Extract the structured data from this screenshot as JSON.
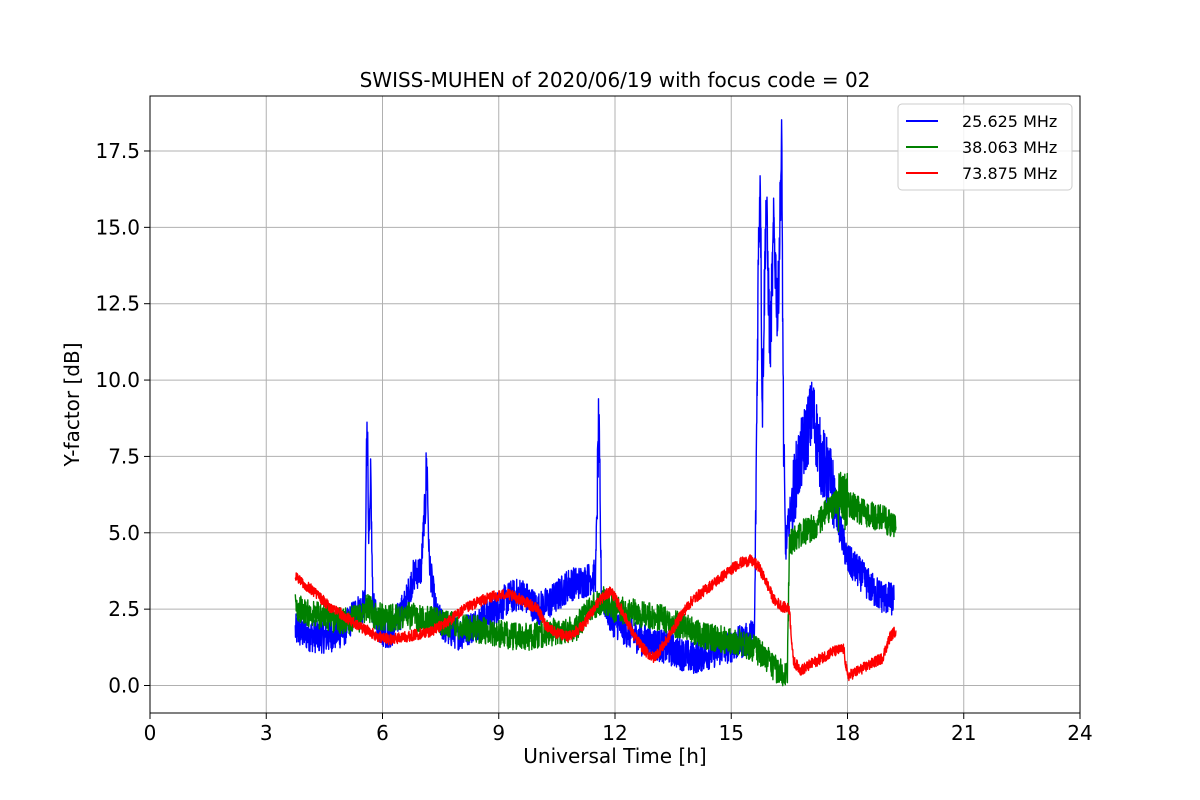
{
  "chart_data": {
    "type": "line",
    "title": "SWISS-MUHEN of 2020/06/19 with focus code = 02",
    "xlabel": "Universal Time [h]",
    "ylabel": "Y-factor [dB]",
    "xlim": [
      0,
      24
    ],
    "ylim": [
      -0.9,
      19.3
    ],
    "xticks": [
      0,
      3,
      6,
      9,
      12,
      15,
      18,
      21,
      24
    ],
    "xtick_labels": [
      "0",
      "3",
      "6",
      "9",
      "12",
      "15",
      "18",
      "21",
      "24"
    ],
    "yticks": [
      0.0,
      2.5,
      5.0,
      7.5,
      10.0,
      12.5,
      15.0,
      17.5
    ],
    "ytick_labels": [
      "0.0",
      "2.5",
      "5.0",
      "7.5",
      "10.0",
      "12.5",
      "15.0",
      "17.5"
    ],
    "grid": true,
    "legend_position": "top-right",
    "series": [
      {
        "name": "25.625 MHz",
        "color": "#0000ff",
        "x": [
          3.75,
          4.0,
          4.3,
          4.6,
          5.0,
          5.3,
          5.55,
          5.6,
          5.65,
          5.7,
          5.75,
          5.9,
          6.2,
          6.6,
          6.8,
          7.0,
          7.15,
          7.2,
          7.25,
          7.4,
          7.7,
          8.0,
          8.4,
          8.8,
          9.0,
          9.3,
          9.6,
          10.0,
          10.4,
          10.8,
          11.2,
          11.5,
          11.58,
          11.65,
          11.9,
          12.3,
          12.7,
          13.2,
          13.6,
          14.0,
          14.5,
          15.0,
          15.4,
          15.6,
          15.7,
          15.75,
          15.8,
          15.9,
          16.0,
          16.1,
          16.2,
          16.3,
          16.35,
          16.4,
          16.45,
          16.5,
          16.7,
          16.9,
          17.1,
          17.3,
          17.6,
          17.8,
          18.0,
          18.3,
          18.6,
          18.9,
          19.2
        ],
        "y": [
          1.8,
          1.7,
          1.6,
          1.6,
          1.8,
          2.4,
          2.6,
          9.2,
          4.5,
          6.5,
          2.6,
          1.9,
          1.7,
          2.7,
          3.6,
          3.8,
          7.2,
          4.3,
          3.6,
          2.2,
          1.8,
          1.7,
          2.0,
          2.4,
          2.6,
          2.9,
          3.0,
          2.5,
          2.8,
          3.3,
          3.4,
          3.6,
          8.6,
          3.0,
          2.2,
          1.8,
          1.5,
          1.3,
          1.1,
          0.9,
          1.1,
          1.3,
          1.5,
          1.7,
          14.0,
          17.0,
          9.0,
          16.0,
          11.0,
          15.0,
          12.0,
          17.8,
          8.0,
          4.5,
          5.0,
          5.5,
          7.0,
          8.0,
          9.0,
          7.5,
          6.5,
          5.2,
          4.1,
          3.7,
          3.2,
          2.9,
          2.8
        ]
      },
      {
        "name": "38.063 MHz",
        "color": "#008000",
        "x": [
          3.75,
          4.0,
          4.3,
          4.7,
          5.0,
          5.4,
          5.6,
          5.8,
          6.2,
          6.6,
          7.0,
          7.4,
          7.8,
          8.2,
          8.6,
          9.0,
          9.4,
          9.8,
          10.2,
          10.6,
          11.0,
          11.4,
          11.7,
          12.0,
          12.4,
          12.8,
          13.2,
          13.6,
          14.0,
          14.4,
          14.8,
          15.2,
          15.6,
          15.9,
          16.1,
          16.3,
          16.45,
          16.5,
          16.7,
          17.0,
          17.3,
          17.6,
          17.9,
          18.2,
          18.5,
          18.8,
          19.0,
          19.25
        ],
        "y": [
          2.6,
          2.4,
          2.3,
          2.2,
          2.1,
          2.2,
          2.6,
          2.3,
          2.2,
          2.3,
          2.2,
          2.1,
          2.0,
          1.9,
          1.8,
          1.7,
          1.6,
          1.6,
          1.7,
          1.8,
          1.9,
          2.6,
          2.8,
          2.5,
          2.4,
          2.3,
          2.2,
          2.0,
          1.8,
          1.6,
          1.5,
          1.4,
          1.2,
          0.9,
          0.6,
          0.4,
          0.5,
          4.6,
          4.9,
          5.1,
          5.4,
          5.9,
          6.1,
          5.8,
          5.6,
          5.5,
          5.4,
          5.2
        ]
      },
      {
        "name": "73.875 MHz",
        "color": "#ff0000",
        "x": [
          3.75,
          4.0,
          4.3,
          4.6,
          5.0,
          5.3,
          5.6,
          5.9,
          6.2,
          6.6,
          7.0,
          7.3,
          7.7,
          8.0,
          8.4,
          8.8,
          9.2,
          9.6,
          10.0,
          10.2,
          10.5,
          10.8,
          11.2,
          11.6,
          11.9,
          12.2,
          12.5,
          12.8,
          13.0,
          13.3,
          13.7,
          14.0,
          14.3,
          14.6,
          14.9,
          15.2,
          15.5,
          15.7,
          15.9,
          16.1,
          16.3,
          16.5,
          16.6,
          16.8,
          17.2,
          17.6,
          17.9,
          18.0,
          18.3,
          18.6,
          18.9,
          19.1,
          19.25
        ],
        "y": [
          3.6,
          3.3,
          3.0,
          2.6,
          2.3,
          2.0,
          1.8,
          1.6,
          1.5,
          1.6,
          1.7,
          1.8,
          2.1,
          2.4,
          2.7,
          2.9,
          3.0,
          2.8,
          2.5,
          2.0,
          1.7,
          1.6,
          2.0,
          2.8,
          3.1,
          2.4,
          1.6,
          1.1,
          0.9,
          1.4,
          2.3,
          2.8,
          3.1,
          3.4,
          3.7,
          4.0,
          4.1,
          3.9,
          3.4,
          2.8,
          2.6,
          2.5,
          0.8,
          0.5,
          0.8,
          1.1,
          1.2,
          0.3,
          0.5,
          0.7,
          0.9,
          1.6,
          1.8
        ]
      }
    ]
  }
}
